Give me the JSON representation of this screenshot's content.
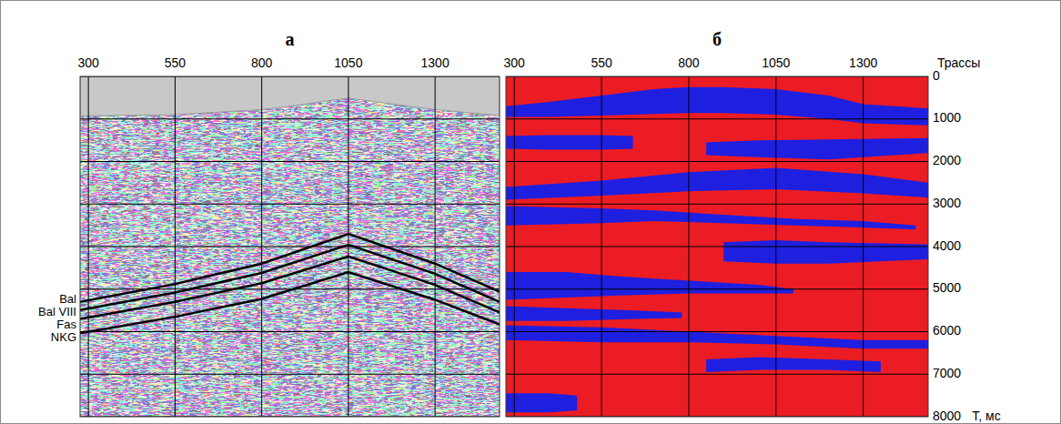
{
  "chart_data": [
    {
      "type": "seismic_section",
      "title": "а",
      "xlim": [
        276,
        1486
      ],
      "xticks": [
        300,
        550,
        800,
        1050,
        1300
      ],
      "ylim": [
        0,
        8000
      ],
      "yticks": [
        0,
        1000,
        2000,
        3000,
        4000,
        5000,
        6000,
        7000,
        8000
      ],
      "grid": true,
      "tick_labels": "x",
      "surface": {
        "x": [
          276,
          550,
          800,
          900,
          1000,
          1050,
          1150,
          1300,
          1486
        ],
        "values": [
          930,
          900,
          780,
          680,
          560,
          510,
          620,
          780,
          920
        ]
      },
      "x": [
        276,
        550,
        800,
        1050,
        1300,
        1486
      ],
      "series": [
        {
          "name": "Bal",
          "color": "#000000",
          "values": [
            5300,
            4880,
            4400,
            3700,
            4400,
            5060
          ]
        },
        {
          "name": "Bal VIII",
          "color": "#000000",
          "values": [
            5490,
            5080,
            4620,
            3960,
            4640,
            5300
          ]
        },
        {
          "name": "Fas",
          "color": "#000000",
          "values": [
            5700,
            5300,
            4860,
            4230,
            4900,
            5550
          ]
        },
        {
          "name": "NKG",
          "color": "#000000",
          "values": [
            6040,
            5650,
            5230,
            4600,
            5250,
            5830
          ]
        }
      ]
    },
    {
      "type": "classification_section",
      "title": "б",
      "x_label": "Трассы",
      "y_label": "T, мс",
      "xlim": [
        276,
        1486
      ],
      "xticks": [
        300,
        550,
        800,
        1050,
        1300
      ],
      "ylim": [
        0,
        8000
      ],
      "yticks": [
        0,
        1000,
        2000,
        3000,
        4000,
        5000,
        6000,
        7000,
        8000
      ],
      "grid": true,
      "color": "#1f1fe0",
      "bands": [
        {
          "x": [
            276,
            400,
            550,
            700,
            800,
            900,
            1050,
            1200,
            1300,
            1486
          ],
          "top": [
            700,
            600,
            450,
            300,
            250,
            250,
            300,
            450,
            650,
            750
          ],
          "bottom": [
            950,
            950,
            920,
            880,
            860,
            860,
            900,
            1000,
            1100,
            1150
          ]
        },
        {
          "x": [
            276,
            400,
            550,
            640
          ],
          "top": [
            1400,
            1380,
            1380,
            1400
          ],
          "bottom": [
            1700,
            1720,
            1720,
            1700
          ]
        },
        {
          "x": [
            850,
            1000,
            1200,
            1486
          ],
          "top": [
            1550,
            1500,
            1480,
            1450
          ],
          "bottom": [
            1850,
            1900,
            1950,
            1800
          ]
        },
        {
          "x": [
            276,
            550,
            800,
            1050,
            1300,
            1486
          ],
          "top": [
            2600,
            2450,
            2250,
            2150,
            2300,
            2500
          ],
          "bottom": [
            2900,
            2800,
            2700,
            2650,
            2750,
            2850
          ]
        },
        {
          "x": [
            276,
            550,
            700,
            900,
            1100,
            1300,
            1450
          ],
          "top": [
            3050,
            3100,
            3150,
            3250,
            3350,
            3400,
            3500
          ],
          "bottom": [
            3500,
            3450,
            3400,
            3450,
            3500,
            3550,
            3600
          ]
        },
        {
          "x": [
            900,
            1050,
            1200,
            1486
          ],
          "top": [
            3900,
            3850,
            3900,
            3950
          ],
          "bottom": [
            4350,
            4400,
            4400,
            4300
          ]
        },
        {
          "x": [
            276,
            450,
            600,
            800,
            1000,
            1100
          ],
          "top": [
            4600,
            4600,
            4700,
            4800,
            4900,
            5000
          ],
          "bottom": [
            5250,
            5200,
            5150,
            5100,
            5100,
            5100
          ]
        },
        {
          "x": [
            276,
            450,
            650,
            780
          ],
          "top": [
            5400,
            5450,
            5500,
            5550
          ],
          "bottom": [
            5750,
            5750,
            5700,
            5680
          ]
        },
        {
          "x": [
            276,
            550,
            800,
            1050,
            1300,
            1486
          ],
          "top": [
            5850,
            5900,
            6000,
            6100,
            6200,
            6200
          ],
          "bottom": [
            6200,
            6250,
            6250,
            6300,
            6400,
            6400
          ]
        },
        {
          "x": [
            850,
            1000,
            1200,
            1350
          ],
          "top": [
            6650,
            6600,
            6650,
            6700
          ],
          "bottom": [
            6950,
            6900,
            6900,
            6950
          ]
        },
        {
          "x": [
            276,
            400,
            480
          ],
          "top": [
            7450,
            7450,
            7500
          ],
          "bottom": [
            7900,
            7900,
            7850
          ]
        }
      ]
    }
  ]
}
